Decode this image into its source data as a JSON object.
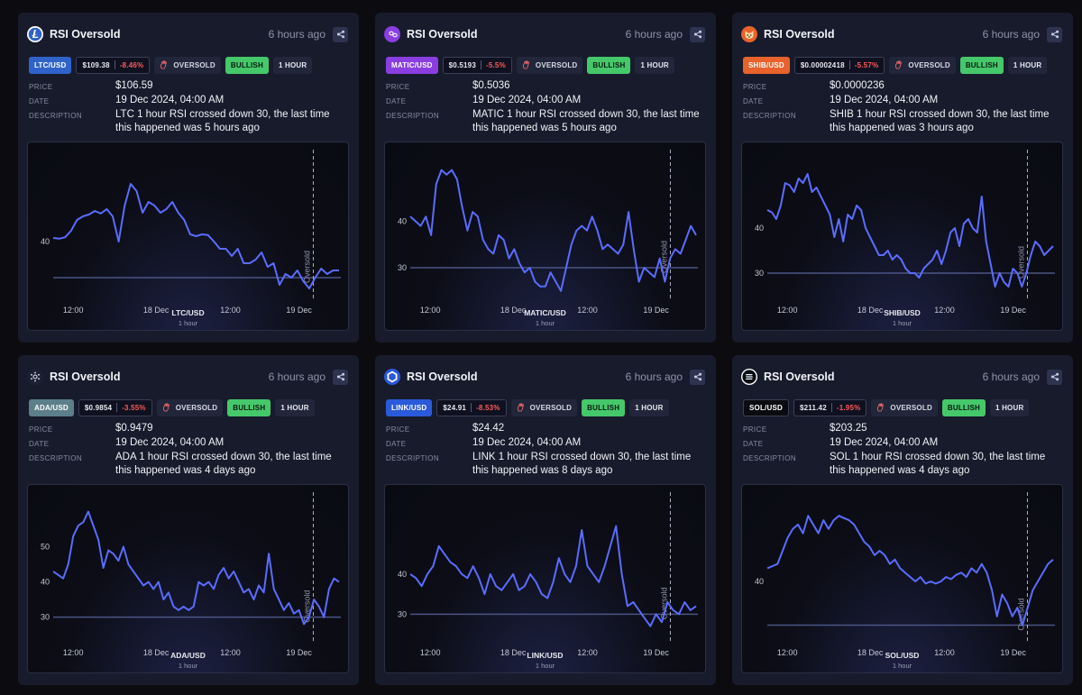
{
  "cards": [
    {
      "symbol": "LTC",
      "title": "RSI Oversold",
      "time_ago": "6 hours ago",
      "pair": "LTC/USD",
      "pair_color": "#2f63c9",
      "tag_price": "$109.38",
      "tag_change": "-8.46%",
      "status": "OVERSOLD",
      "sentiment": "BULLISH",
      "timeframe": "1 HOUR",
      "labels": {
        "price": "PRICE",
        "date": "DATE",
        "description": "DESCRIPTION"
      },
      "price": "$106.59",
      "date": "19 Dec 2024, 04:00 AM",
      "description": "LTC 1 hour RSI crossed down 30, the last time this happened was 5 hours ago",
      "icon": "litecoin-icon",
      "icon_color": "#2f63c9",
      "chart_data": {
        "type": "line",
        "title": "LTC/USD",
        "subtitle": "1 hour",
        "x_ticks": [
          "12:00",
          "18 Dec",
          "12:00",
          "19 Dec"
        ],
        "y_ticks": [
          40
        ],
        "threshold": 30,
        "marker_label": "Oversold",
        "ylim": [
          25,
          65
        ],
        "values": [
          41,
          40.8,
          41.2,
          43,
          46,
          47,
          47.5,
          48.5,
          47.8,
          49,
          47,
          40,
          50,
          56,
          54,
          48,
          51,
          50,
          48,
          49,
          51,
          48,
          46,
          42,
          41.5,
          42,
          41.8,
          40,
          38,
          38,
          36,
          38,
          34,
          34,
          35,
          37,
          33,
          34,
          28,
          31,
          30,
          32,
          29,
          27,
          30,
          32.5,
          31,
          32,
          32
        ]
      }
    },
    {
      "symbol": "MATIC",
      "title": "RSI Oversold",
      "time_ago": "6 hours ago",
      "pair": "MATIC/USD",
      "pair_color": "#8a3ee0",
      "tag_price": "$0.5193",
      "tag_change": "-5.5%",
      "status": "OVERSOLD",
      "sentiment": "BULLISH",
      "timeframe": "1 HOUR",
      "labels": {
        "price": "PRICE",
        "date": "DATE",
        "description": "DESCRIPTION"
      },
      "price": "$0.5036",
      "date": "19 Dec 2024, 04:00 AM",
      "description": "MATIC 1 hour RSI crossed down 30, the last time this happened was 5 hours ago",
      "icon": "polygon-icon",
      "icon_color": "#8a3ee0",
      "chart_data": {
        "type": "line",
        "title": "MATIC/USD",
        "subtitle": "1 hour",
        "x_ticks": [
          "12:00",
          "18 Dec",
          "12:00",
          "19 Dec"
        ],
        "y_ticks": [
          40,
          30
        ],
        "threshold": 30,
        "marker_label": "Oversold",
        "ylim": [
          24,
          55
        ],
        "values": [
          41,
          40,
          39,
          41,
          37,
          48,
          51,
          50,
          51,
          49,
          43,
          38,
          42,
          41,
          36,
          34,
          33,
          37,
          36,
          32,
          34,
          31,
          29,
          30,
          27,
          26,
          26,
          29,
          27,
          25,
          30,
          35,
          38,
          39,
          38,
          41,
          38,
          34,
          35,
          34,
          33,
          35,
          42,
          34,
          27,
          30,
          29,
          28,
          32,
          27,
          32,
          34,
          33,
          36,
          39,
          37
        ]
      }
    },
    {
      "symbol": "SHIB",
      "title": "RSI Oversold",
      "time_ago": "6 hours ago",
      "pair": "SHIB/USD",
      "pair_color": "#e8622b",
      "tag_price": "$0.00002418",
      "tag_change": "-5.57%",
      "status": "OVERSOLD",
      "sentiment": "BULLISH",
      "timeframe": "1 HOUR",
      "labels": {
        "price": "PRICE",
        "date": "DATE",
        "description": "DESCRIPTION"
      },
      "price": "$0.0000236",
      "date": "19 Dec 2024, 04:00 AM",
      "description": "SHIB 1 hour RSI crossed down 30, the last time this happened was 3 hours ago",
      "icon": "shiba-icon",
      "icon_color": "#e8622b",
      "chart_data": {
        "type": "line",
        "title": "SHIB/USD",
        "subtitle": "1 hour",
        "x_ticks": [
          "12:00",
          "18 Dec",
          "12:00",
          "19 Dec"
        ],
        "y_ticks": [
          40,
          30
        ],
        "threshold": 30,
        "marker_label": "Oversold",
        "ylim": [
          25,
          57
        ],
        "values": [
          44,
          43.5,
          42,
          45,
          50,
          49.5,
          48,
          51,
          50,
          52,
          48,
          49,
          47,
          45,
          43,
          38,
          42,
          37,
          43,
          42,
          45,
          44,
          40,
          38,
          36,
          34,
          34,
          35,
          33,
          34,
          33,
          31,
          30,
          30,
          29,
          31,
          32,
          33,
          35,
          32,
          35,
          39,
          40,
          36,
          41,
          42,
          40,
          39,
          47,
          37,
          32,
          27,
          30,
          28,
          27,
          31,
          30,
          27,
          30,
          34,
          37,
          36,
          34,
          35,
          36
        ]
      }
    },
    {
      "symbol": "ADA",
      "title": "RSI Oversold",
      "time_ago": "6 hours ago",
      "pair": "ADA/USD",
      "pair_color": "#5c7f8a",
      "tag_price": "$0.9854",
      "tag_change": "-3.55%",
      "status": "OVERSOLD",
      "sentiment": "BULLISH",
      "timeframe": "1 HOUR",
      "labels": {
        "price": "PRICE",
        "date": "DATE",
        "description": "DESCRIPTION"
      },
      "price": "$0.9479",
      "date": "19 Dec 2024, 04:00 AM",
      "description": "ADA 1 hour RSI crossed down 30, the last time this happened was 4 days ago",
      "icon": "cardano-icon",
      "icon_color": "#e8eaf2",
      "chart_data": {
        "type": "line",
        "title": "ADA/USD",
        "subtitle": "1 hour",
        "x_ticks": [
          "12:00",
          "18 Dec",
          "12:00",
          "19 Dec"
        ],
        "y_ticks": [
          50,
          40,
          30
        ],
        "threshold": 30,
        "marker_label": "Oversold",
        "ylim": [
          24,
          65
        ],
        "values": [
          43,
          42,
          41,
          45,
          53,
          56,
          57,
          60,
          56,
          52,
          44,
          49,
          48,
          46,
          50,
          45,
          43,
          41,
          39,
          40,
          38,
          40,
          35,
          37,
          33,
          32,
          33,
          32,
          33,
          40,
          39,
          40,
          38,
          42,
          44,
          41,
          43,
          40,
          37,
          38,
          35,
          39,
          37,
          48,
          38,
          35,
          32,
          34,
          31,
          32,
          28,
          30,
          35,
          33,
          30,
          38,
          41,
          40
        ]
      }
    },
    {
      "symbol": "LINK",
      "title": "RSI Oversold",
      "time_ago": "6 hours ago",
      "pair": "LINK/USD",
      "pair_color": "#2a5ada",
      "tag_price": "$24.91",
      "tag_change": "-8.53%",
      "status": "OVERSOLD",
      "sentiment": "BULLISH",
      "timeframe": "1 HOUR",
      "labels": {
        "price": "PRICE",
        "date": "DATE",
        "description": "DESCRIPTION"
      },
      "price": "$24.42",
      "date": "19 Dec 2024, 04:00 AM",
      "description": "LINK 1 hour RSI crossed down 30, the last time this happened was 8 days ago",
      "icon": "chainlink-icon",
      "icon_color": "#2a5ada",
      "chart_data": {
        "type": "line",
        "title": "LINK/USD",
        "subtitle": "1 hour",
        "x_ticks": [
          "12:00",
          "18 Dec",
          "12:00",
          "19 Dec"
        ],
        "y_ticks": [
          40,
          30
        ],
        "threshold": 30,
        "marker_label": "Oversold",
        "ylim": [
          24,
          60
        ],
        "values": [
          40,
          39,
          37,
          40,
          42,
          47,
          45,
          43,
          42,
          40,
          39,
          42,
          39,
          35,
          40,
          37,
          36,
          38,
          40,
          36,
          37,
          40,
          38,
          35,
          34,
          38,
          44,
          40,
          38,
          42,
          51,
          42,
          40,
          38,
          42,
          47,
          52,
          40,
          32,
          33,
          31,
          29,
          27,
          30,
          28,
          33,
          31,
          30,
          33,
          31,
          32
        ]
      }
    },
    {
      "symbol": "SOL",
      "title": "RSI Oversold",
      "time_ago": "6 hours ago",
      "pair": "SOL/USD",
      "pair_color": "#0a0b10",
      "tag_price": "$211.42",
      "tag_change": "-1.95%",
      "status": "OVERSOLD",
      "sentiment": "BULLISH",
      "timeframe": "1 HOUR",
      "labels": {
        "price": "PRICE",
        "date": "DATE",
        "description": "DESCRIPTION"
      },
      "price": "$203.25",
      "date": "19 Dec 2024, 04:00 AM",
      "description": "SOL 1 hour RSI crossed down 30, the last time this happened was 4 days ago",
      "icon": "solana-icon",
      "icon_color": "#0a0b10",
      "chart_data": {
        "type": "line",
        "title": "SOL/USD",
        "subtitle": "1 hour",
        "x_ticks": [
          "12:00",
          "18 Dec",
          "12:00",
          "19 Dec"
        ],
        "y_ticks": [
          40
        ],
        "threshold": 30,
        "marker_label": "Oversold",
        "ylim": [
          27,
          60
        ],
        "values": [
          43,
          43.5,
          44,
          47,
          50,
          52,
          53,
          51,
          55,
          53,
          51,
          54,
          52,
          54,
          55,
          54.5,
          54,
          53,
          51,
          49,
          48,
          46,
          47,
          46,
          44,
          45,
          43,
          42,
          41,
          40,
          41,
          39.5,
          40,
          39.5,
          40,
          41,
          40.5,
          41.5,
          42,
          41,
          43,
          42,
          44,
          42,
          38,
          32,
          37,
          35,
          32,
          34,
          30,
          34,
          38,
          40,
          42,
          44,
          45
        ]
      }
    }
  ]
}
